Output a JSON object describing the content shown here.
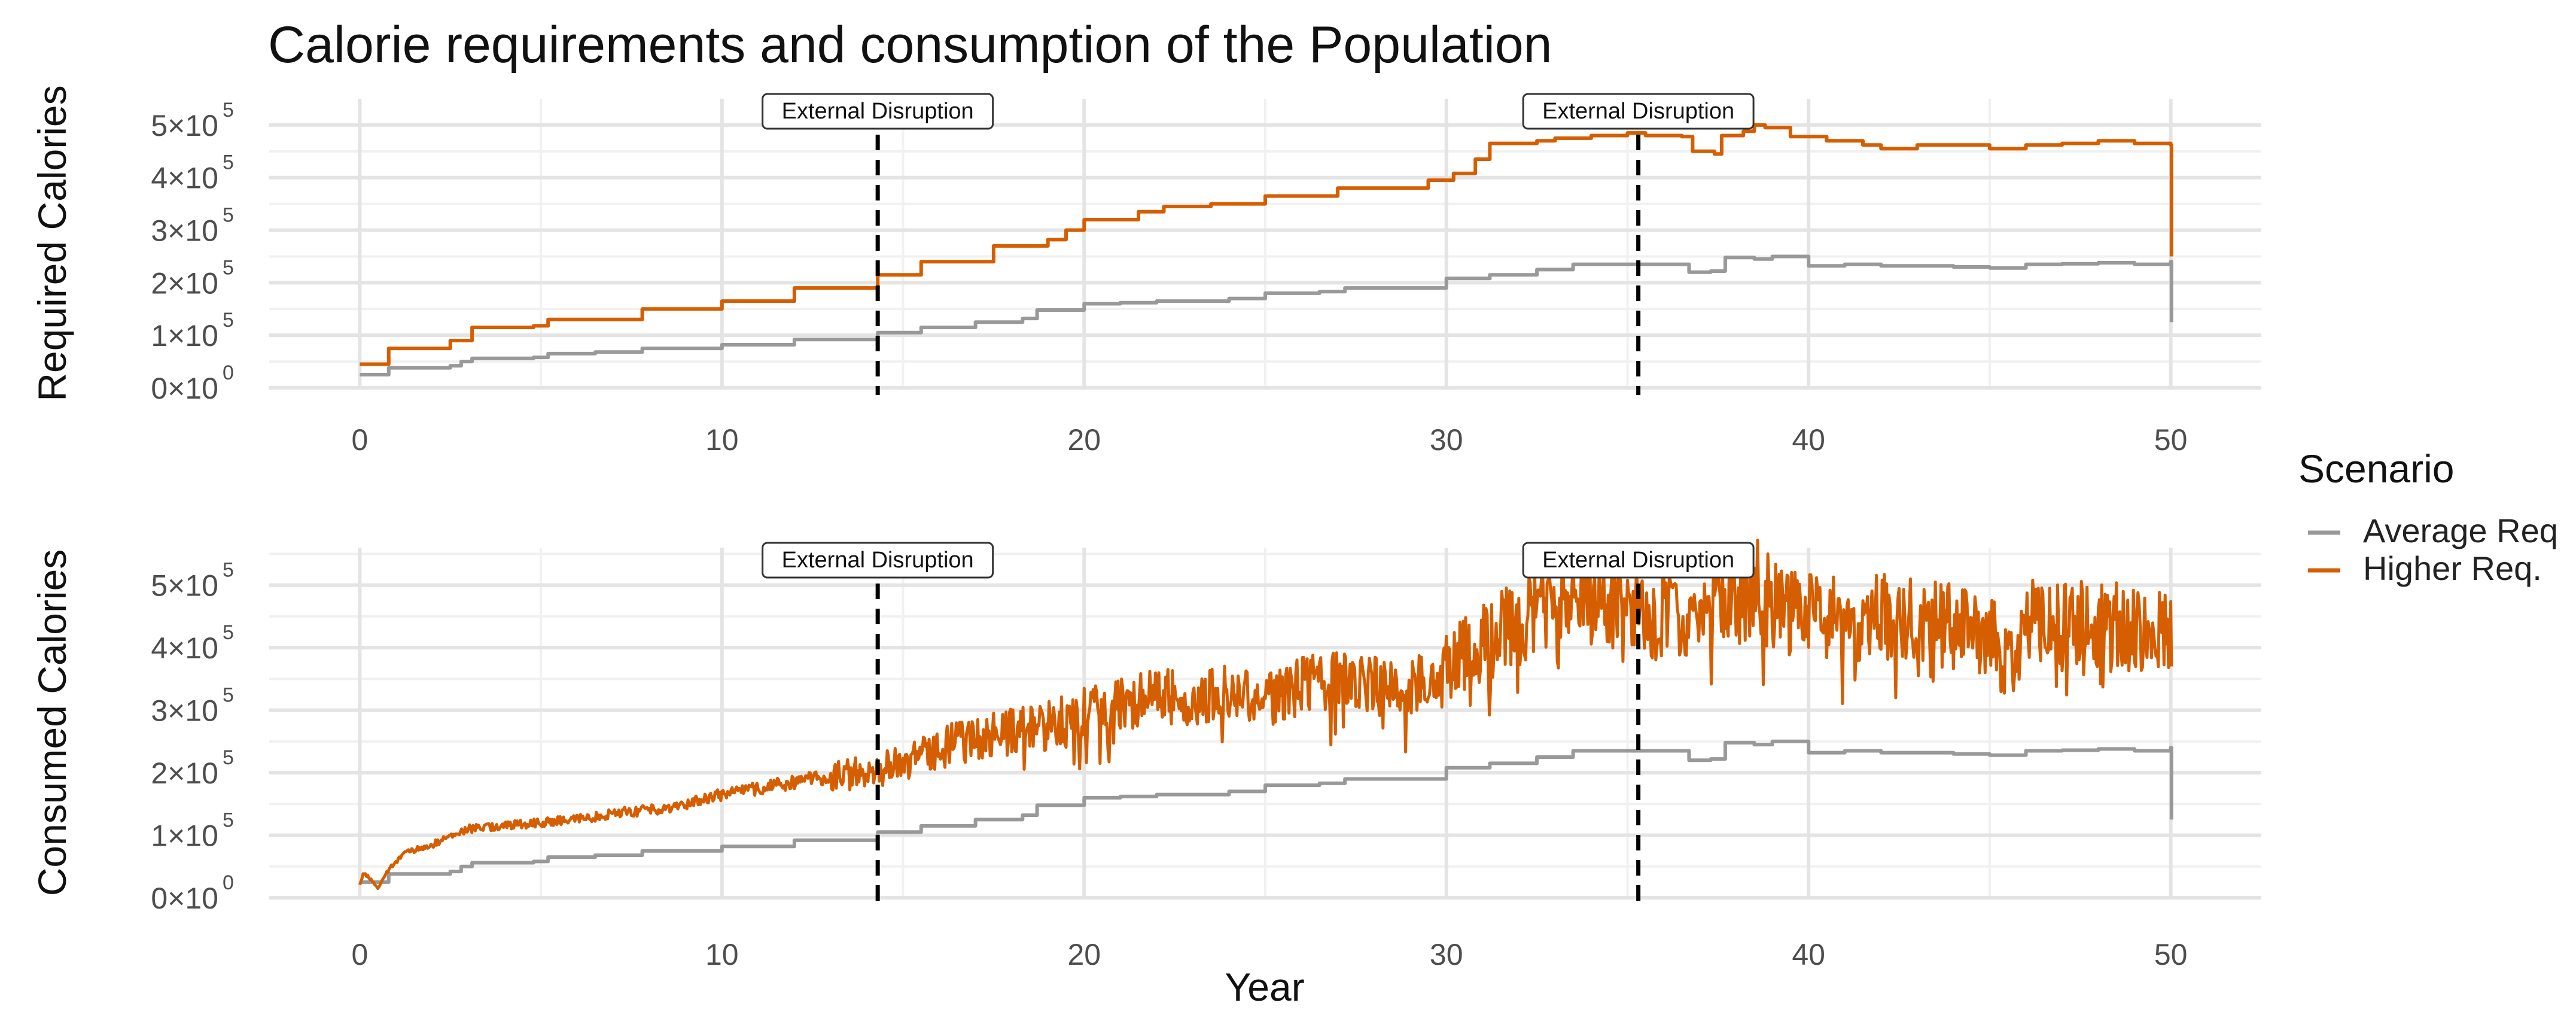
{
  "title": "Calorie requirements and consumption of the Population",
  "xlabel": "Year",
  "legend": {
    "title": "Scenario",
    "items": [
      {
        "label": "Average Req",
        "color": "#999999"
      },
      {
        "label": "Higher Req.",
        "color": "#D55E00"
      }
    ]
  },
  "annotation_label": "External Disruption",
  "chart_data": [
    {
      "type": "line",
      "panel": "top",
      "title": "Calorie requirements and consumption of the Population",
      "xlabel": "",
      "ylabel": "Required Calories",
      "xlim": [
        -2.5,
        52.5
      ],
      "ylim": [
        0,
        550000
      ],
      "x_ticks": [
        0,
        10,
        20,
        30,
        40,
        50
      ],
      "y_ticks": [
        {
          "value": 0,
          "mantissa": "0",
          "exponent": "0"
        },
        {
          "value": 100000,
          "mantissa": "1",
          "exponent": "5"
        },
        {
          "value": 200000,
          "mantissa": "2",
          "exponent": "5"
        },
        {
          "value": 300000,
          "mantissa": "3",
          "exponent": "5"
        },
        {
          "value": 400000,
          "mantissa": "4",
          "exponent": "5"
        },
        {
          "value": 500000,
          "mantissa": "5",
          "exponent": "5"
        }
      ],
      "vlines": [
        {
          "x": 14.3,
          "label": "External Disruption"
        },
        {
          "x": 35.3,
          "label": "External Disruption"
        }
      ],
      "series": [
        {
          "name": "Average Req",
          "color": "#999999",
          "noise": 0,
          "x": [
            0,
            0.75,
            0.8,
            2.5,
            2.8,
            3.1,
            4.8,
            5.2,
            6.5,
            7.8,
            10,
            12,
            14.3,
            15.5,
            17,
            18.3,
            18.7,
            20,
            21,
            22,
            24,
            25,
            26.5,
            27.2,
            30,
            31.2,
            32.5,
            33.5,
            35,
            36.5,
            36.7,
            37.3,
            37.7,
            38.5,
            39,
            40,
            41,
            42,
            44,
            45,
            46,
            47,
            48,
            49,
            50,
            50.02
          ],
          "values": [
            25000,
            25000,
            38000,
            42000,
            50000,
            56000,
            58000,
            65000,
            68000,
            75000,
            82000,
            92000,
            105000,
            115000,
            125000,
            132000,
            148000,
            160000,
            162000,
            165000,
            170000,
            180000,
            183000,
            190000,
            208000,
            215000,
            225000,
            235000,
            235000,
            235000,
            220000,
            222000,
            248000,
            245000,
            250000,
            232000,
            235000,
            232000,
            230000,
            228000,
            235000,
            236000,
            238000,
            235000,
            240000,
            125000
          ]
        },
        {
          "name": "Higher Req.",
          "color": "#D55E00",
          "noise": 0,
          "x": [
            0,
            0.75,
            0.8,
            2.5,
            3.1,
            4.8,
            5.2,
            7.8,
            10,
            12,
            14.3,
            15.5,
            17.5,
            19,
            19.5,
            20,
            21.5,
            22.2,
            23.5,
            25,
            27,
            29.5,
            30.2,
            30.8,
            31.2,
            32.5,
            33,
            34,
            35,
            35.5,
            36.5,
            36.8,
            37.4,
            37.6,
            38.2,
            38.5,
            38.8,
            39.5,
            40.5,
            41.5,
            42,
            43,
            44,
            45,
            46,
            47,
            48,
            49,
            50,
            50.02
          ],
          "values": [
            45000,
            45000,
            75000,
            90000,
            115000,
            118000,
            130000,
            150000,
            165000,
            190000,
            215000,
            240000,
            270000,
            282000,
            300000,
            320000,
            335000,
            345000,
            350000,
            365000,
            380000,
            395000,
            408000,
            435000,
            465000,
            470000,
            475000,
            480000,
            485000,
            480000,
            478000,
            450000,
            445000,
            480000,
            488000,
            500000,
            495000,
            478000,
            470000,
            462000,
            455000,
            462000,
            462000,
            455000,
            462000,
            465000,
            470000,
            465000,
            462000,
            250000
          ]
        }
      ]
    },
    {
      "type": "line",
      "panel": "bottom",
      "title": "",
      "xlabel": "Year",
      "ylabel": "Consumed Calories",
      "xlim": [
        -2.5,
        52.5
      ],
      "ylim": [
        0,
        560000
      ],
      "x_ticks": [
        0,
        10,
        20,
        30,
        40,
        50
      ],
      "y_ticks": [
        {
          "value": 0,
          "mantissa": "0",
          "exponent": "0"
        },
        {
          "value": 100000,
          "mantissa": "1",
          "exponent": "5"
        },
        {
          "value": 200000,
          "mantissa": "2",
          "exponent": "5"
        },
        {
          "value": 300000,
          "mantissa": "3",
          "exponent": "5"
        },
        {
          "value": 400000,
          "mantissa": "4",
          "exponent": "5"
        },
        {
          "value": 500000,
          "mantissa": "5",
          "exponent": "5"
        }
      ],
      "vlines": [
        {
          "x": 14.3,
          "label": "External Disruption"
        },
        {
          "x": 35.3,
          "label": "External Disruption"
        }
      ],
      "series": [
        {
          "name": "Average Req",
          "color": "#999999",
          "noise": 0,
          "x": [
            0,
            0.75,
            0.8,
            2.5,
            2.8,
            3.1,
            4.8,
            5.2,
            6.5,
            7.8,
            10,
            12,
            14.3,
            15.5,
            17,
            18.3,
            18.7,
            20,
            21,
            22,
            24,
            25,
            26.5,
            27.2,
            30,
            31.2,
            32.5,
            33.5,
            35,
            36.5,
            36.7,
            37.3,
            37.7,
            38.5,
            39,
            40,
            41,
            42,
            44,
            45,
            46,
            47,
            48,
            49,
            50,
            50.02
          ],
          "values": [
            25000,
            25000,
            38000,
            42000,
            50000,
            56000,
            58000,
            65000,
            68000,
            75000,
            82000,
            92000,
            105000,
            115000,
            125000,
            132000,
            148000,
            160000,
            162000,
            165000,
            170000,
            180000,
            183000,
            190000,
            208000,
            215000,
            225000,
            235000,
            235000,
            235000,
            220000,
            222000,
            248000,
            245000,
            250000,
            232000,
            235000,
            232000,
            230000,
            228000,
            235000,
            236000,
            238000,
            235000,
            240000,
            125000
          ]
        },
        {
          "name": "Higher Req.",
          "color": "#D55E00",
          "noise": 1,
          "x": [
            0,
            0.1,
            0.3,
            0.5,
            0.8,
            1.2,
            2,
            3,
            4,
            5,
            6,
            7,
            8,
            9,
            10,
            11,
            12,
            13,
            14.3,
            15,
            16,
            17,
            18,
            19,
            20,
            21,
            22,
            23,
            24,
            25,
            26,
            27,
            28,
            29,
            30,
            31,
            32,
            33,
            34,
            35,
            35.5,
            36,
            37,
            38,
            38.5,
            39,
            40,
            41,
            42,
            43,
            44,
            45,
            45.5,
            46,
            47,
            48,
            49,
            50,
            50.02
          ],
          "values": [
            20000,
            40000,
            30000,
            15000,
            45000,
            70000,
            85000,
            110000,
            115000,
            120000,
            125000,
            135000,
            140000,
            150000,
            165000,
            175000,
            185000,
            195000,
            205000,
            215000,
            240000,
            255000,
            265000,
            275000,
            295000,
            310000,
            325000,
            320000,
            330000,
            315000,
            340000,
            345000,
            340000,
            330000,
            370000,
            410000,
            440000,
            460000,
            470000,
            470000,
            440000,
            455000,
            460000,
            470000,
            500000,
            470000,
            450000,
            440000,
            450000,
            440000,
            435000,
            425000,
            370000,
            440000,
            445000,
            440000,
            430000,
            430000,
            370000
          ]
        }
      ]
    }
  ]
}
